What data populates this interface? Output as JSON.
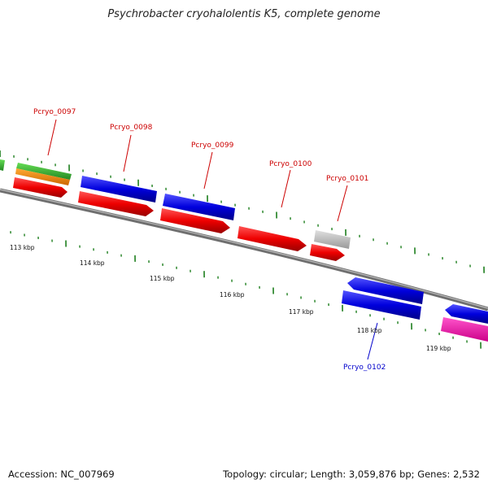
{
  "title": "Psychrobacter cryohalolentis K5, complete genome",
  "footer": {
    "accession": "Accession: NC_007969",
    "summary": "Topology: circular; Length: 3,059,876 bp; Genes: 2,532"
  },
  "colors": {
    "backbone": "#7f7f7f",
    "ticks": "#1e7f1e",
    "forward_gene": "#ee0000",
    "reverse_gene": "#0000dd",
    "label_forward": "#cc0000",
    "label_reverse": "#0000cc"
  },
  "kbp_labels": [
    "113 kbp",
    "114 kbp",
    "115 kbp",
    "116 kbp",
    "117 kbp",
    "118 kbp",
    "119 kbp"
  ],
  "gene_labels": [
    {
      "text": "Pcryo_0097",
      "strand": "forward"
    },
    {
      "text": "Pcryo_0098",
      "strand": "forward"
    },
    {
      "text": "Pcryo_0099",
      "strand": "forward"
    },
    {
      "text": "Pcryo_0100",
      "strand": "forward"
    },
    {
      "text": "Pcryo_0101",
      "strand": "forward"
    },
    {
      "text": "Pcryo_0102",
      "strand": "reverse"
    }
  ]
}
